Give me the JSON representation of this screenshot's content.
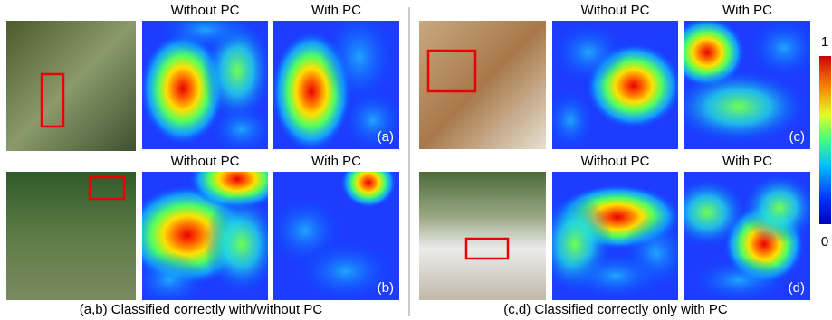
{
  "panels": [
    {
      "tag": "(a)",
      "headers": [
        "Without PC",
        "With PC"
      ]
    },
    {
      "tag": "(b)",
      "headers": [
        "Without PC",
        "With PC"
      ]
    },
    {
      "tag": "(c)",
      "headers": [
        "Without PC",
        "With PC"
      ]
    },
    {
      "tag": "(d)",
      "headers": [
        "Without PC",
        "With PC"
      ]
    }
  ],
  "captions": [
    "(a,b) Classified correctly with/without PC",
    "(c,d) Classified correctly only with PC"
  ],
  "colorbar": {
    "max": "1",
    "min": "0"
  }
}
